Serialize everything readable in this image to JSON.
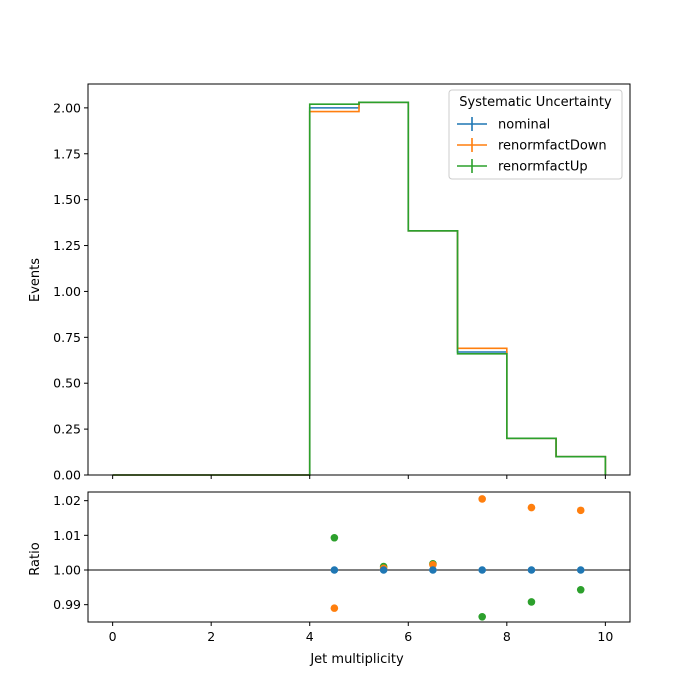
{
  "chart_data": [
    {
      "type": "step",
      "panel": "main",
      "bin_edges": [
        0,
        1,
        2,
        3,
        4,
        5,
        6,
        7,
        8,
        9,
        10
      ],
      "ylabel": "Events",
      "xlim": [
        -0.5,
        10.5
      ],
      "ylim": [
        0,
        2.13
      ],
      "xticks": [
        "0",
        "2",
        "4",
        "6",
        "8",
        "10"
      ],
      "yticks": [
        "0.00",
        "0.25",
        "0.50",
        "0.75",
        "1.00",
        "1.25",
        "1.50",
        "1.75",
        "2.00"
      ],
      "legend": {
        "title": "Systematic Uncertainty",
        "placement": "top-right"
      },
      "series": [
        {
          "name": "nominal",
          "color": "#1f77b4",
          "values": [
            0,
            0,
            0,
            0,
            2.0,
            2.03,
            1.33,
            0.67,
            0.2,
            0.1
          ]
        },
        {
          "name": "renormfactDown",
          "color": "#ff7f0e",
          "values": [
            0,
            0,
            0,
            0,
            1.98,
            2.03,
            1.33,
            0.69,
            0.2,
            0.1
          ]
        },
        {
          "name": "renormfactUp",
          "color": "#2ca02c",
          "values": [
            0,
            0,
            0,
            0,
            2.02,
            2.03,
            1.33,
            0.66,
            0.2,
            0.1
          ]
        }
      ]
    },
    {
      "type": "scatter",
      "panel": "ratio",
      "xlabel": "Jet multiplicity",
      "ylabel": "Ratio",
      "xlim": [
        -0.5,
        10.5
      ],
      "ylim": [
        0.985,
        1.0225
      ],
      "xticks": [
        "0",
        "2",
        "4",
        "6",
        "8",
        "10"
      ],
      "yticks": [
        "0.99",
        "1.00",
        "1.01",
        "1.02"
      ],
      "reference_line": 1.0,
      "x": [
        4.5,
        5.5,
        6.5,
        7.5,
        8.5,
        9.5
      ],
      "series": [
        {
          "name": "nominal",
          "color": "#1f77b4",
          "values": [
            1.0,
            1.0,
            1.0,
            1.0,
            1.0,
            1.0
          ]
        },
        {
          "name": "renormfactDown",
          "color": "#ff7f0e",
          "values": [
            0.989,
            1.0005,
            1.0015,
            1.0205,
            1.018,
            1.0172
          ]
        },
        {
          "name": "renormfactUp",
          "color": "#2ca02c",
          "values": [
            1.0093,
            1.001,
            1.0018,
            0.9865,
            0.9908,
            0.9943
          ]
        }
      ]
    }
  ]
}
